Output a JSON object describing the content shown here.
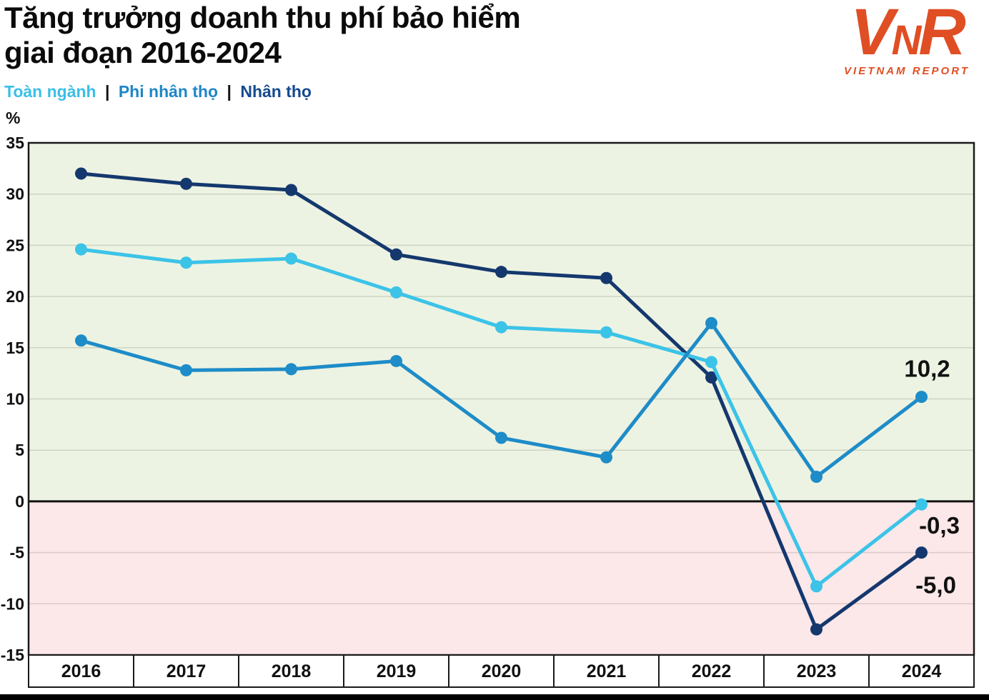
{
  "header": {
    "title_line1": "Tăng trưởng doanh thu phí bảo hiểm",
    "title_line2": "giai đoạn 2016-2024",
    "legend_separator": "|",
    "legend": [
      {
        "label": "Toàn ngành",
        "color": "#3bbfe6"
      },
      {
        "label": "Phi nhân thọ",
        "color": "#1e86c7"
      },
      {
        "label": "Nhân thọ",
        "color": "#16498f"
      }
    ],
    "unit_label": "%"
  },
  "logo": {
    "letter1": "V",
    "letter2": "N",
    "letter3": "R",
    "subtext": "VIETNAM REPORT",
    "color": "#e04e24"
  },
  "chart_data": {
    "type": "line",
    "title": "Tăng trưởng doanh thu phí bảo hiểm giai đoạn 2016-2024",
    "ylabel": "%",
    "ylim": [
      -15,
      35
    ],
    "ytick_step": 5,
    "grid": true,
    "positive_bg": "#edf3e2",
    "negative_bg": "#fce7e9",
    "zero_line_color": "#111111",
    "categories": [
      "2016",
      "2017",
      "2018",
      "2019",
      "2020",
      "2021",
      "2022",
      "2023",
      "2024"
    ],
    "series": [
      {
        "name": "Toàn ngành",
        "color": "#3cc3e8",
        "values": [
          24.6,
          23.3,
          23.7,
          20.4,
          17.0,
          16.5,
          13.6,
          -8.3,
          -0.3
        ],
        "end_label": "-0,3"
      },
      {
        "name": "Phi nhân thọ",
        "color": "#1e8cc8",
        "values": [
          15.7,
          12.8,
          12.9,
          13.7,
          6.2,
          4.3,
          17.4,
          2.4,
          10.2
        ],
        "end_label": "10,2"
      },
      {
        "name": "Nhân thọ",
        "color": "#14386e",
        "values": [
          32.0,
          31.0,
          30.4,
          24.1,
          22.4,
          21.8,
          12.1,
          -12.5,
          -5.0
        ],
        "end_label": "-5,0"
      }
    ]
  }
}
